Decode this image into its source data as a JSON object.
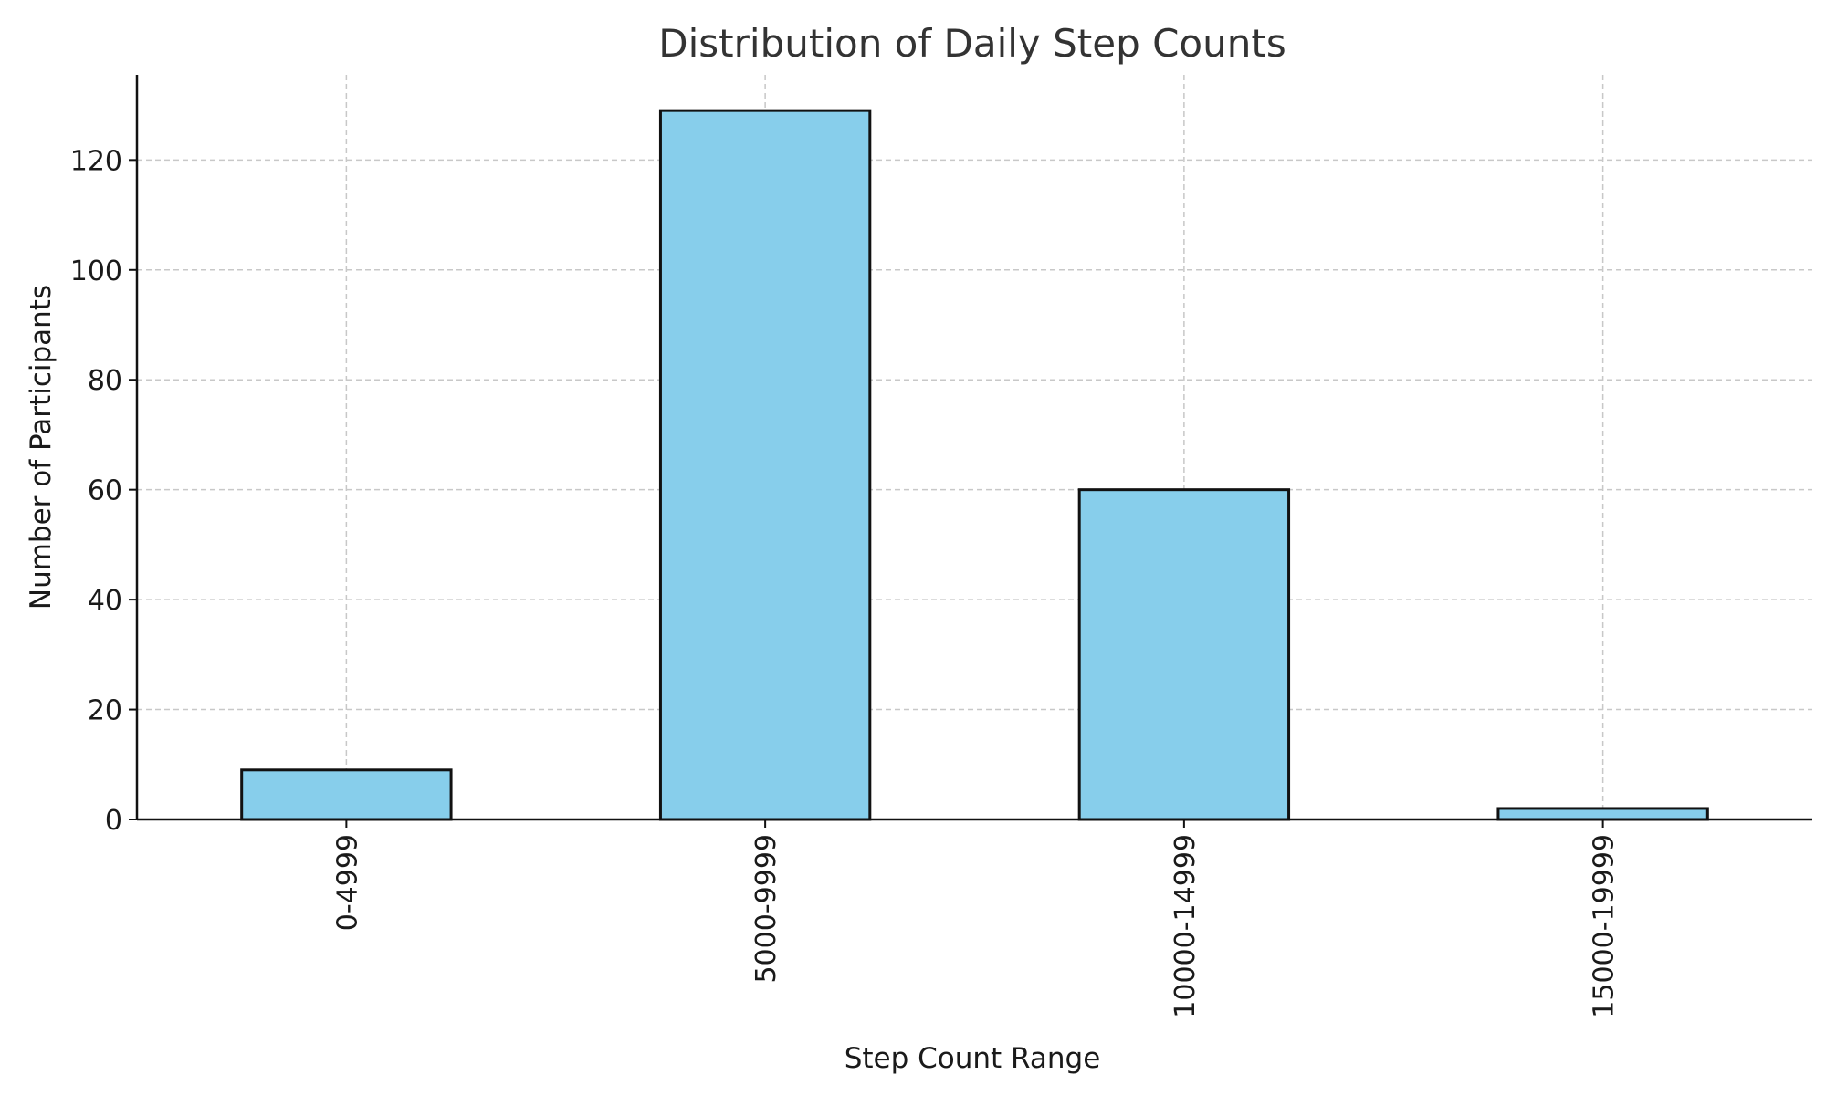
{
  "chart_data": {
    "type": "bar",
    "title": "Distribution of Daily Step Counts",
    "xlabel": "Step Count Range",
    "ylabel": "Number of Participants",
    "categories": [
      "0-4999",
      "5000-9999",
      "10000-14999",
      "15000-19999"
    ],
    "values": [
      9,
      129,
      60,
      2
    ],
    "ylim": [
      0,
      135.5
    ],
    "yticks": [
      0,
      20,
      40,
      60,
      80,
      100,
      120
    ],
    "grid": true,
    "bar_color": "#87CEEB",
    "edge_color": "#111111"
  }
}
